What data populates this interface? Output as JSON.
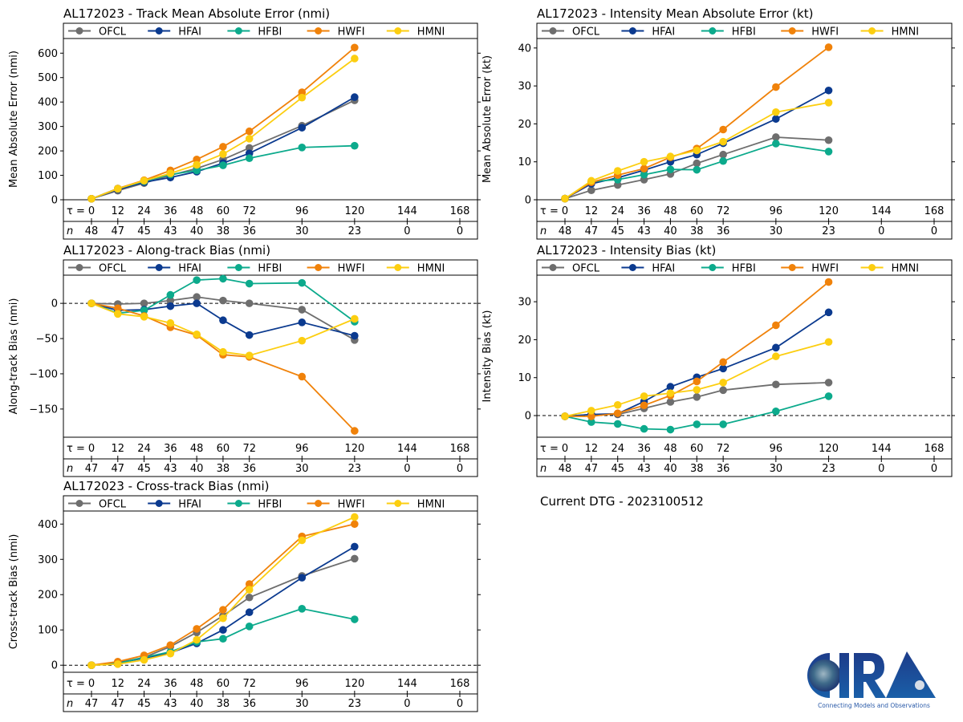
{
  "figure": {
    "dtg_text": "Current DTG - 2023100512",
    "logo": {
      "name": "CIRA",
      "tagline": "Connecting Models and Observations"
    },
    "colors": {
      "OFCL": "#6e6e6e",
      "HFAI": "#0b3a8f",
      "HFBI": "#0caa8c",
      "HWFI": "#f0820a",
      "HMNI": "#fcce10"
    },
    "tau_prefix": "τ = ",
    "n_prefix": "n"
  },
  "chart_data": [
    {
      "id": "track-mae",
      "type": "line",
      "title": "AL172023 - Track Mean Absolute Error (nmi)",
      "xlabel": "",
      "ylabel": "Mean Absolute Error (nmi)",
      "ylim": [
        0,
        660
      ],
      "yticks": [
        0,
        100,
        200,
        300,
        400,
        500,
        600
      ],
      "zero_line": false,
      "legend": "top",
      "x_ticks": [
        0,
        12,
        24,
        36,
        48,
        60,
        72,
        96,
        120,
        144,
        168
      ],
      "n_counts": [
        48,
        47,
        45,
        43,
        40,
        38,
        36,
        30,
        23,
        0,
        0
      ],
      "x": [
        0,
        12,
        24,
        36,
        48,
        60,
        72,
        96,
        120
      ],
      "series": [
        {
          "name": "OFCL",
          "values": [
            4,
            37,
            68,
            100,
            128,
            165,
            212,
            303,
            407
          ]
        },
        {
          "name": "HFAI",
          "values": [
            4,
            42,
            72,
            91,
            115,
            150,
            190,
            295,
            420
          ]
        },
        {
          "name": "HFBI",
          "values": [
            4,
            46,
            76,
            103,
            120,
            141,
            170,
            214,
            221
          ]
        },
        {
          "name": "HWFI",
          "values": [
            4,
            46,
            80,
            120,
            165,
            217,
            280,
            440,
            623
          ]
        },
        {
          "name": "HMNI",
          "values": [
            4,
            45,
            78,
            108,
            143,
            187,
            250,
            418,
            578
          ]
        }
      ]
    },
    {
      "id": "intensity-mae",
      "type": "line",
      "title": "AL172023 - Intensity Mean Absolute Error (kt)",
      "xlabel": "",
      "ylabel": "Mean Absolute Error (kt)",
      "ylim": [
        0,
        42.5
      ],
      "yticks": [
        0,
        10,
        20,
        30,
        40
      ],
      "zero_line": false,
      "legend": "top",
      "x_ticks": [
        0,
        12,
        24,
        36,
        48,
        60,
        72,
        96,
        120,
        144,
        168
      ],
      "n_counts": [
        48,
        47,
        45,
        43,
        40,
        38,
        36,
        30,
        23,
        0,
        0
      ],
      "x": [
        0,
        12,
        24,
        36,
        48,
        60,
        72,
        96,
        120
      ],
      "series": [
        {
          "name": "OFCL",
          "values": [
            0.3,
            2.5,
            3.9,
            5.3,
            6.8,
            9.6,
            11.9,
            16.5,
            15.7
          ]
        },
        {
          "name": "HFAI",
          "values": [
            0.3,
            4.2,
            5.8,
            7.8,
            10.0,
            11.9,
            14.9,
            21.3,
            28.8
          ]
        },
        {
          "name": "HFBI",
          "values": [
            0.3,
            4.8,
            5.3,
            6.6,
            8.0,
            7.9,
            10.2,
            14.8,
            12.7
          ]
        },
        {
          "name": "HWFI",
          "values": [
            0.3,
            4.6,
            6.5,
            8.2,
            11.2,
            13.5,
            18.5,
            29.7,
            40.2
          ]
        },
        {
          "name": "HMNI",
          "values": [
            0.3,
            5.0,
            7.6,
            10.0,
            11.4,
            13.0,
            15.3,
            23.1,
            25.6
          ]
        }
      ]
    },
    {
      "id": "along-track-bias",
      "type": "line",
      "title": "AL172023 - Along-track Bias (nmi)",
      "xlabel": "",
      "ylabel": "Along-track Bias (nmi)",
      "ylim": [
        -190,
        40
      ],
      "yticks": [
        -150,
        -100,
        -50,
        0
      ],
      "zero_line": true,
      "legend": "top",
      "x_ticks": [
        0,
        12,
        24,
        36,
        48,
        60,
        72,
        96,
        120,
        144,
        168
      ],
      "n_counts": [
        47,
        47,
        45,
        43,
        40,
        38,
        36,
        30,
        23,
        0,
        0
      ],
      "x": [
        0,
        12,
        24,
        36,
        48,
        60,
        72,
        96,
        120
      ],
      "series": [
        {
          "name": "OFCL",
          "values": [
            0,
            -1,
            0,
            4,
            9,
            4,
            0,
            -9,
            -52
          ]
        },
        {
          "name": "HFAI",
          "values": [
            0,
            -10,
            -9,
            -4,
            0,
            -24,
            -45,
            -27,
            -46
          ]
        },
        {
          "name": "HFBI",
          "values": [
            0,
            -14,
            -10,
            12,
            33,
            35,
            28,
            29,
            -26
          ]
        },
        {
          "name": "HWFI",
          "values": [
            0,
            -7,
            -18,
            -34,
            -45,
            -73,
            -76,
            -104,
            -181
          ]
        },
        {
          "name": "HMNI",
          "values": [
            0,
            -15,
            -19,
            -28,
            -44,
            -69,
            -74,
            -53,
            -22
          ]
        }
      ]
    },
    {
      "id": "intensity-bias",
      "type": "line",
      "title": "AL172023 - Intensity Bias (kt)",
      "xlabel": "",
      "ylabel": "Intensity Bias (kt)",
      "ylim": [
        -5.7,
        37
      ],
      "yticks": [
        0,
        10,
        20,
        30
      ],
      "zero_line": true,
      "legend": "top",
      "x_ticks": [
        0,
        12,
        24,
        36,
        48,
        60,
        72,
        96,
        120,
        144,
        168
      ],
      "n_counts": [
        48,
        47,
        45,
        43,
        40,
        38,
        36,
        30,
        23,
        0,
        0
      ],
      "x": [
        0,
        12,
        24,
        36,
        48,
        60,
        72,
        96,
        120
      ],
      "series": [
        {
          "name": "OFCL",
          "values": [
            -0.2,
            0.3,
            0.3,
            1.9,
            3.6,
            4.9,
            6.7,
            8.2,
            8.7
          ]
        },
        {
          "name": "HFAI",
          "values": [
            -0.2,
            0.3,
            0.5,
            3.7,
            7.6,
            10.1,
            12.4,
            17.9,
            27.2
          ]
        },
        {
          "name": "HFBI",
          "values": [
            -0.2,
            -1.7,
            -2.2,
            -3.5,
            -3.7,
            -2.3,
            -2.3,
            1.1,
            5.1
          ]
        },
        {
          "name": "HWFI",
          "values": [
            -0.2,
            -0.2,
            0.6,
            2.7,
            5.3,
            9.0,
            14.1,
            23.8,
            35.2
          ]
        },
        {
          "name": "HMNI",
          "values": [
            -0.2,
            1.3,
            2.8,
            5.1,
            5.9,
            6.8,
            8.7,
            15.6,
            19.4
          ]
        }
      ]
    },
    {
      "id": "cross-track-bias",
      "type": "line",
      "title": "AL172023 - Cross-track Bias (nmi)",
      "xlabel": "",
      "ylabel": "Cross-track Bias (nmi)",
      "ylim": [
        -20,
        437
      ],
      "yticks": [
        0,
        100,
        200,
        300,
        400
      ],
      "zero_line": true,
      "legend": "top",
      "x_ticks": [
        0,
        12,
        24,
        36,
        48,
        60,
        72,
        96,
        120,
        144,
        168
      ],
      "n_counts": [
        47,
        47,
        45,
        43,
        40,
        38,
        36,
        30,
        23,
        0,
        0
      ],
      "x": [
        0,
        12,
        24,
        36,
        48,
        60,
        72,
        96,
        120
      ],
      "series": [
        {
          "name": "OFCL",
          "values": [
            0,
            7,
            22,
            53,
            93,
            140,
            192,
            253,
            302
          ]
        },
        {
          "name": "HFAI",
          "values": [
            0,
            6,
            20,
            35,
            62,
            100,
            150,
            248,
            336
          ]
        },
        {
          "name": "HFBI",
          "values": [
            0,
            5,
            22,
            38,
            66,
            75,
            110,
            160,
            130
          ]
        },
        {
          "name": "HWFI",
          "values": [
            0,
            10,
            28,
            57,
            103,
            157,
            230,
            365,
            400
          ]
        },
        {
          "name": "HMNI",
          "values": [
            0,
            3,
            15,
            33,
            72,
            133,
            214,
            354,
            420
          ]
        }
      ]
    }
  ]
}
